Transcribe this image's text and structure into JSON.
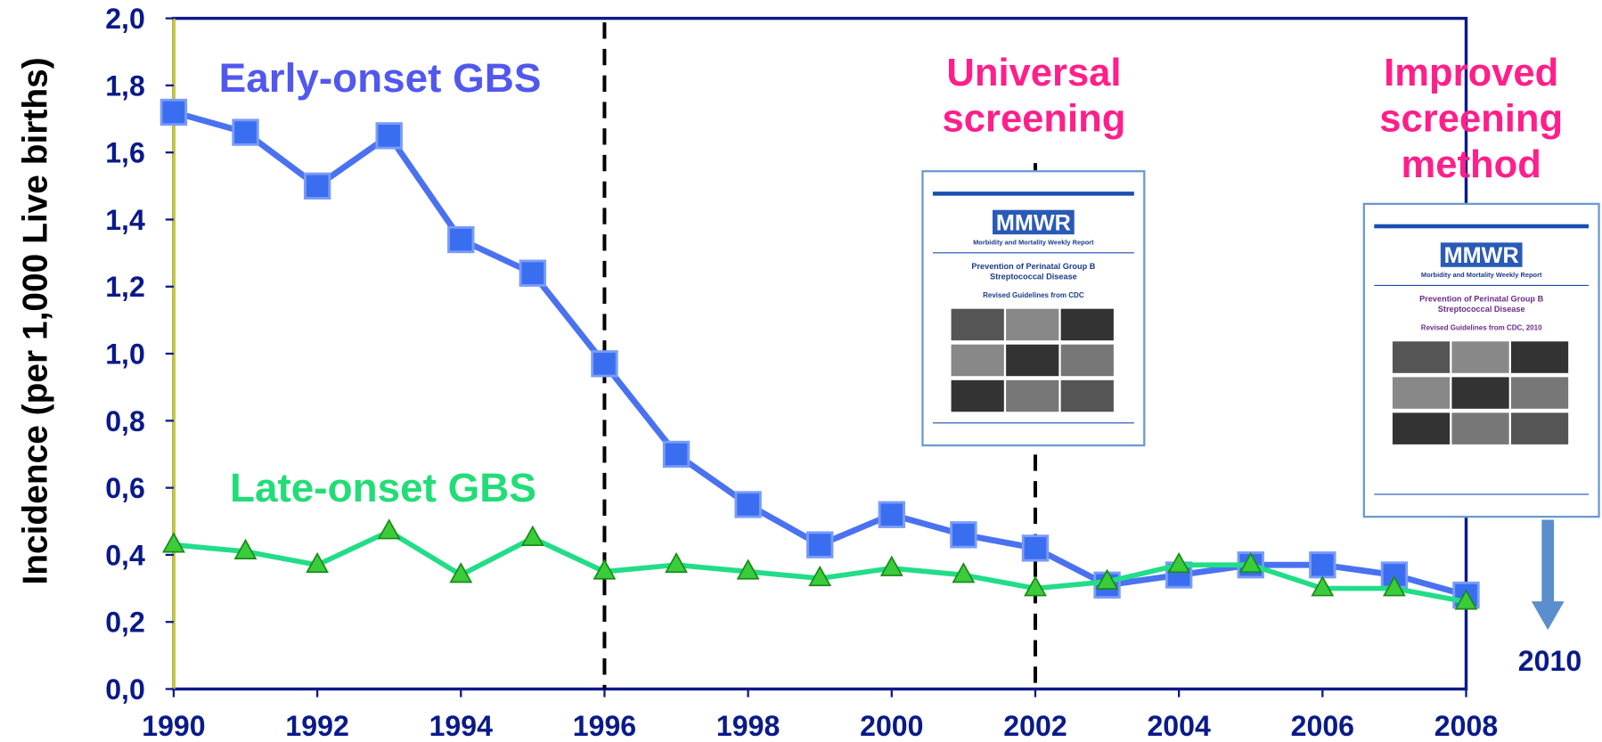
{
  "chart_data": {
    "type": "line",
    "y_label": "Incidence (per 1,000 Live births)",
    "x": [
      1990,
      1991,
      1992,
      1993,
      1994,
      1995,
      1996,
      1997,
      1998,
      1999,
      2000,
      2001,
      2002,
      2003,
      2004,
      2005,
      2006,
      2007,
      2008
    ],
    "series": [
      {
        "name": "Early-onset GBS",
        "color": "#4a72f0",
        "marker": "square",
        "values": [
          1.72,
          1.66,
          1.5,
          1.65,
          1.34,
          1.24,
          0.97,
          0.7,
          0.55,
          0.43,
          0.52,
          0.46,
          0.42,
          0.31,
          0.34,
          0.37,
          0.37,
          0.34,
          0.28
        ]
      },
      {
        "name": "Late-onset GBS",
        "color": "#22dd88",
        "marker": "triangle",
        "values": [
          0.43,
          0.41,
          0.37,
          0.47,
          0.34,
          0.45,
          0.35,
          0.37,
          0.35,
          0.33,
          0.36,
          0.34,
          0.3,
          0.32,
          0.37,
          0.37,
          0.3,
          0.3,
          0.26
        ]
      }
    ],
    "xlim": [
      1990,
      2008
    ],
    "xticks": [
      1990,
      1992,
      1994,
      1996,
      1998,
      2000,
      2002,
      2004,
      2006,
      2008
    ],
    "ylim": [
      0,
      2
    ],
    "yticks": [
      {
        "value": 0,
        "label": "0,0"
      },
      {
        "value": 0.2,
        "label": "0,2"
      },
      {
        "value": 0.4,
        "label": "0,4"
      },
      {
        "value": 0.6,
        "label": "0,6"
      },
      {
        "value": 0.8,
        "label": "0,8"
      },
      {
        "value": 1.0,
        "label": "1,0"
      },
      {
        "value": 1.2,
        "label": "1,2"
      },
      {
        "value": 1.4,
        "label": "1,4"
      },
      {
        "value": 1.6,
        "label": "1,6"
      },
      {
        "value": 1.8,
        "label": "1,8"
      },
      {
        "value": 2.0,
        "label": "2,0"
      }
    ],
    "vlines": [
      1996,
      2002
    ],
    "annotations": [
      {
        "lines": [
          "Universal",
          "screening"
        ]
      },
      {
        "lines": [
          "Improved",
          "screening",
          "method"
        ]
      },
      {
        "lines": [
          "2010"
        ]
      }
    ],
    "documents": [
      {
        "logo": "MMWR",
        "subtitle": "Morbidity and Mortality Weekly Report",
        "heading": [
          "Prevention of Perinatal Group B",
          "Streptococcal Disease"
        ],
        "note": "Revised Guidelines from CDC"
      },
      {
        "logo": "MMWR",
        "subtitle": "Morbidity and Mortality Weekly Report",
        "heading": [
          "Prevention of Perinatal Group B",
          "Streptococcal Disease"
        ],
        "note": "Revised Guidelines from CDC, 2010"
      }
    ]
  }
}
